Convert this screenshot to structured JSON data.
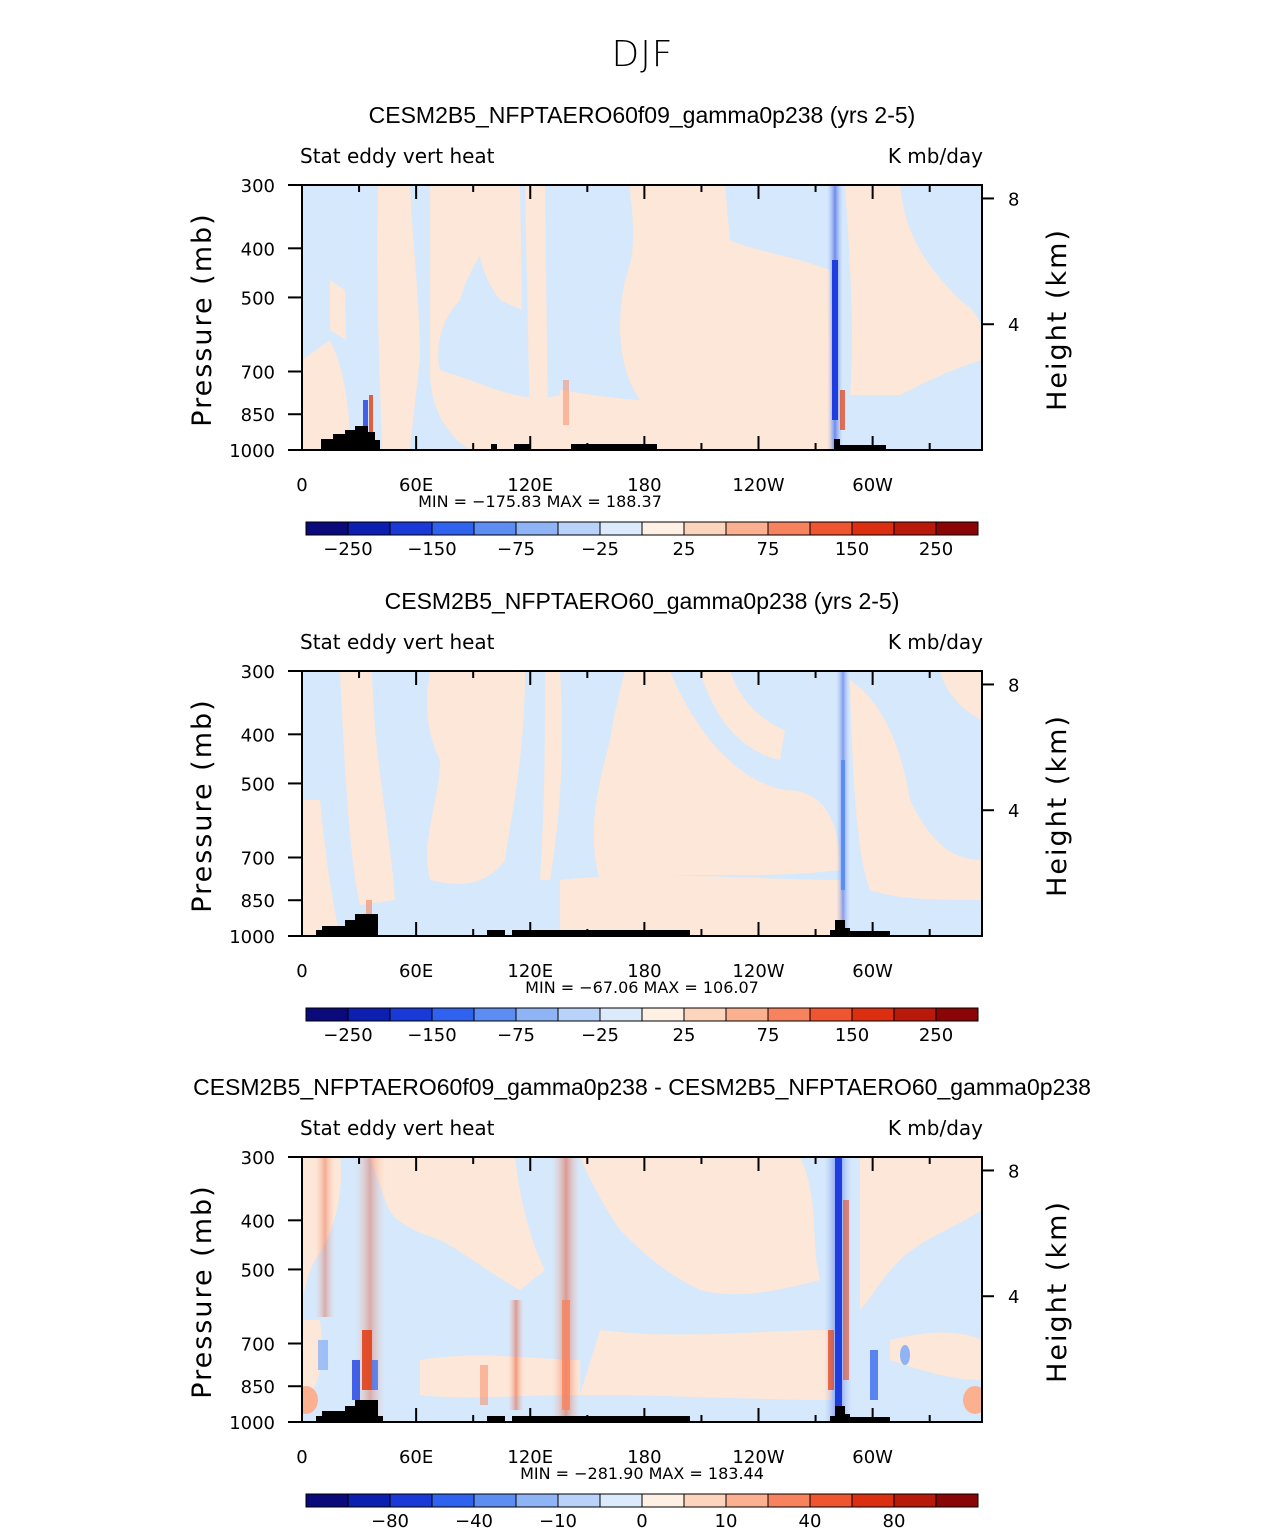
{
  "figure_title": "DJF",
  "chart_data": [
    {
      "type": "heatmap",
      "title": "CESM2B5_NFPTAERO60f09_gamma0p238 (yrs 2-5)",
      "left_string": "Stat eddy vert heat",
      "right_string": "K mb/day",
      "ylabel": "Pressure (mb)",
      "y2label": "Height (km)",
      "y_ticks": [
        "300",
        "400",
        "500",
        "700",
        "850",
        "1000"
      ],
      "y2_ticks": [
        "8",
        "4"
      ],
      "x_ticks": [
        "0",
        "60E",
        "120E",
        "180",
        "120W",
        "60W"
      ],
      "stats": "MIN = −175.83   MAX = 188.37",
      "colorbar_labels": [
        "−250",
        "−150",
        "−75",
        "−25",
        "25",
        "75",
        "150",
        "250"
      ],
      "colors": {
        "background_negative": "#d6e8fb",
        "background_positive": "#fde7d8",
        "strong_negative": "#1d3de0",
        "strong_positive": "#e23a10",
        "topography": "#000000"
      }
    },
    {
      "type": "heatmap",
      "title": "CESM2B5_NFPTAERO60_gamma0p238 (yrs 2-5)",
      "left_string": "Stat eddy vert heat",
      "right_string": "K mb/day",
      "ylabel": "Pressure (mb)",
      "y2label": "Height (km)",
      "y_ticks": [
        "300",
        "400",
        "500",
        "700",
        "850",
        "1000"
      ],
      "y2_ticks": [
        "8",
        "4"
      ],
      "x_ticks": [
        "0",
        "60E",
        "120E",
        "180",
        "120W",
        "60W"
      ],
      "stats": "MIN = −67.06   MAX = 106.07",
      "colorbar_labels": [
        "−250",
        "−150",
        "−75",
        "−25",
        "25",
        "75",
        "150",
        "250"
      ]
    },
    {
      "type": "heatmap",
      "title": "CESM2B5_NFPTAERO60f09_gamma0p238 - CESM2B5_NFPTAERO60_gamma0p238",
      "left_string": "Stat eddy vert heat",
      "right_string": "K mb/day",
      "ylabel": "Pressure (mb)",
      "y2label": "Height (km)",
      "y_ticks": [
        "300",
        "400",
        "500",
        "700",
        "850",
        "1000"
      ],
      "y2_ticks": [
        "8",
        "4"
      ],
      "x_ticks": [
        "0",
        "60E",
        "120E",
        "180",
        "120W",
        "60W"
      ],
      "stats": "MIN = −281.90   MAX = 183.44",
      "colorbar_labels": [
        "−80",
        "−40",
        "−10",
        "0",
        "10",
        "40",
        "80"
      ]
    }
  ],
  "colorbar_colors": [
    "#0a0a7a",
    "#0d1fb0",
    "#1a3ad8",
    "#2f62ee",
    "#5c8df3",
    "#8fb4f6",
    "#b9d2f9",
    "#dcebfc",
    "#fef0e3",
    "#fdd5bd",
    "#fbb08f",
    "#f7835e",
    "#ef5530",
    "#dc2f12",
    "#b8190a",
    "#8a0606"
  ]
}
